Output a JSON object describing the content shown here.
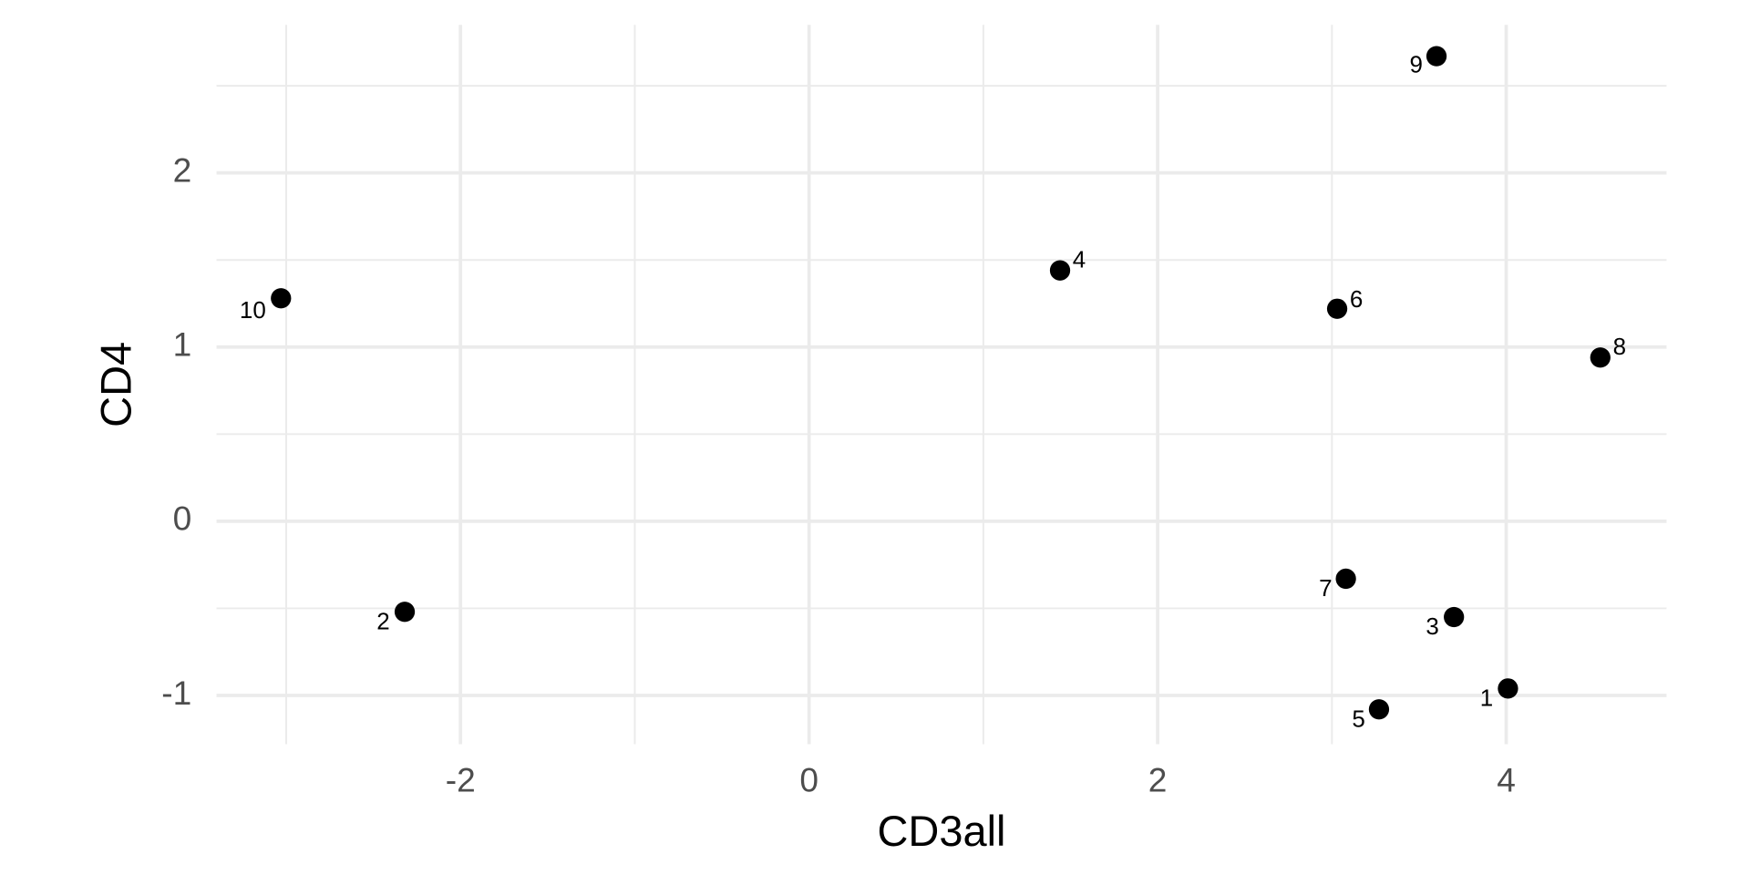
{
  "chart_data": {
    "type": "scatter",
    "x_label": "CD3all",
    "y_label": "CD4",
    "labels": [
      "1",
      "2",
      "3",
      "4",
      "5",
      "6",
      "7",
      "8",
      "9",
      "10"
    ],
    "x": [
      4.01,
      -2.32,
      3.7,
      1.44,
      3.27,
      3.03,
      3.08,
      4.54,
      3.6,
      -3.03
    ],
    "y": [
      -0.96,
      -0.52,
      -0.55,
      1.44,
      -1.08,
      1.22,
      -0.33,
      0.94,
      2.67,
      1.28
    ],
    "color": "#000000",
    "xlim": [
      -3.4,
      4.92
    ],
    "ylim": [
      -1.28,
      2.85
    ],
    "xticks": [
      -2,
      0,
      2,
      4
    ],
    "yticks": [
      -1,
      0,
      1,
      2
    ],
    "grid": true
  }
}
